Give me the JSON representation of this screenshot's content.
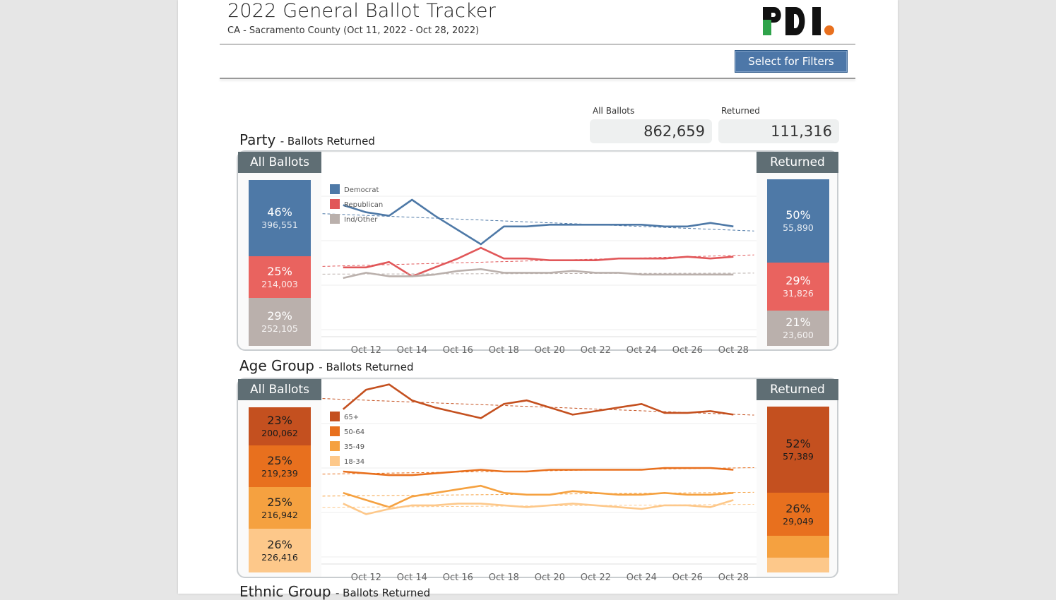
{
  "header": {
    "title": "2022 General Ballot Tracker",
    "subtitle": "CA - Sacramento County (Oct 11, 2022 - Oct 28, 2022)",
    "filter_button": "Select for Filters"
  },
  "kpis": {
    "all_ballots_label": "All Ballots",
    "all_ballots_value": "862,659",
    "returned_label": "Returned",
    "returned_value": "111,316"
  },
  "party": {
    "title": "Party",
    "subtitle": "- Ballots Returned",
    "left_head": "All Ballots",
    "right_head": "Returned",
    "legend": [
      {
        "label": "Democrat",
        "color": "#4e79a7"
      },
      {
        "label": "Republican",
        "color": "#e15759"
      },
      {
        "label": "Ind/Other",
        "color": "#bab0ac"
      }
    ],
    "all_segments": [
      {
        "pct": "46%",
        "count": "396,551",
        "color": "#4e79a7",
        "share": 0.46
      },
      {
        "pct": "25%",
        "count": "214,003",
        "color": "#e9635f",
        "share": 0.25
      },
      {
        "pct": "29%",
        "count": "252,105",
        "color": "#bab0ac",
        "share": 0.29
      }
    ],
    "returned_segments": [
      {
        "pct": "50%",
        "count": "55,890",
        "color": "#4e79a7",
        "share": 0.5
      },
      {
        "pct": "29%",
        "count": "31,826",
        "color": "#e9635f",
        "share": 0.29
      },
      {
        "pct": "21%",
        "count": "23,600",
        "color": "#bab0ac",
        "share": 0.21
      }
    ]
  },
  "age": {
    "title": "Age Group",
    "subtitle": "- Ballots Returned",
    "left_head": "All Ballots",
    "right_head": "Returned",
    "legend": [
      {
        "label": "65+",
        "color": "#c4501f"
      },
      {
        "label": "50-64",
        "color": "#e8701e"
      },
      {
        "label": "35-49",
        "color": "#f5a140"
      },
      {
        "label": "18-34",
        "color": "#fdc88a"
      }
    ],
    "all_segments": [
      {
        "pct": "23%",
        "count": "200,062",
        "color": "#c4501f",
        "share": 0.23
      },
      {
        "pct": "25%",
        "count": "219,239",
        "color": "#e8701e",
        "share": 0.25
      },
      {
        "pct": "25%",
        "count": "216,942",
        "color": "#f5a140",
        "share": 0.25
      },
      {
        "pct": "26%",
        "count": "226,416",
        "color": "#fdc88a",
        "share": 0.26
      }
    ],
    "returned_segments": [
      {
        "pct": "52%",
        "count": "57,389",
        "color": "#c4501f",
        "share": 0.52
      },
      {
        "pct": "26%",
        "count": "29,049",
        "color": "#e8701e",
        "share": 0.26
      },
      {
        "pct": "",
        "count": "",
        "color": "#f5a140",
        "share": 0.13
      },
      {
        "pct": "",
        "count": "",
        "color": "#fdc88a",
        "share": 0.09
      }
    ]
  },
  "ethnic": {
    "title": "Ethnic Group",
    "subtitle": "- Ballots Returned"
  },
  "chart_data": [
    {
      "type": "line",
      "x": [
        "Oct 11",
        "Oct 12",
        "Oct 13",
        "Oct 14",
        "Oct 15",
        "Oct 16",
        "Oct 17",
        "Oct 18",
        "Oct 19",
        "Oct 20",
        "Oct 21",
        "Oct 22",
        "Oct 23",
        "Oct 24",
        "Oct 25",
        "Oct 26",
        "Oct 27",
        "Oct 28"
      ],
      "tick_labels": [
        "Oct 12",
        "Oct 14",
        "Oct 16",
        "Oct 18",
        "Oct 20",
        "Oct 22",
        "Oct 24",
        "Oct 26",
        "Oct 28"
      ],
      "ylim": [
        0,
        1
      ],
      "trendlines": true,
      "legend_position": "top-left",
      "series": [
        {
          "name": "Democrat",
          "color": "#4e79a7",
          "values": [
            0.7,
            0.66,
            0.64,
            0.73,
            0.64,
            0.56,
            0.48,
            0.58,
            0.58,
            0.59,
            0.59,
            0.59,
            0.59,
            0.59,
            0.58,
            0.58,
            0.6,
            0.58
          ]
        },
        {
          "name": "Republican",
          "color": "#e15759",
          "values": [
            0.35,
            0.35,
            0.38,
            0.3,
            0.35,
            0.4,
            0.46,
            0.4,
            0.4,
            0.39,
            0.39,
            0.39,
            0.4,
            0.4,
            0.4,
            0.41,
            0.4,
            0.41
          ]
        },
        {
          "name": "Ind/Other",
          "color": "#bab0ac",
          "values": [
            0.29,
            0.32,
            0.3,
            0.3,
            0.31,
            0.33,
            0.34,
            0.32,
            0.32,
            0.32,
            0.33,
            0.32,
            0.32,
            0.31,
            0.31,
            0.31,
            0.31,
            0.31
          ]
        }
      ]
    },
    {
      "type": "line",
      "x": [
        "Oct 11",
        "Oct 12",
        "Oct 13",
        "Oct 14",
        "Oct 15",
        "Oct 16",
        "Oct 17",
        "Oct 18",
        "Oct 19",
        "Oct 20",
        "Oct 21",
        "Oct 22",
        "Oct 23",
        "Oct 24",
        "Oct 25",
        "Oct 26",
        "Oct 27",
        "Oct 28"
      ],
      "tick_labels": [
        "Oct 12",
        "Oct 14",
        "Oct 16",
        "Oct 18",
        "Oct 20",
        "Oct 22",
        "Oct 24",
        "Oct 26",
        "Oct 28"
      ],
      "ylim": [
        0,
        1
      ],
      "trendlines": true,
      "legend_position": "top-left",
      "series": [
        {
          "name": "65+",
          "color": "#c4501f",
          "values": [
            0.83,
            0.94,
            0.97,
            0.88,
            0.84,
            0.81,
            0.78,
            0.86,
            0.88,
            0.84,
            0.8,
            0.82,
            0.84,
            0.86,
            0.81,
            0.81,
            0.82,
            0.8
          ]
        },
        {
          "name": "50-64",
          "color": "#e8701e",
          "values": [
            0.48,
            0.47,
            0.46,
            0.46,
            0.47,
            0.48,
            0.49,
            0.48,
            0.48,
            0.49,
            0.49,
            0.49,
            0.49,
            0.49,
            0.5,
            0.5,
            0.5,
            0.49
          ]
        },
        {
          "name": "35-49",
          "color": "#f5a140",
          "values": [
            0.36,
            0.32,
            0.28,
            0.34,
            0.36,
            0.38,
            0.4,
            0.36,
            0.35,
            0.35,
            0.37,
            0.36,
            0.35,
            0.35,
            0.36,
            0.35,
            0.35,
            0.36
          ]
        },
        {
          "name": "18-34",
          "color": "#fdc88a",
          "values": [
            0.3,
            0.24,
            0.27,
            0.29,
            0.29,
            0.3,
            0.3,
            0.29,
            0.28,
            0.29,
            0.3,
            0.29,
            0.28,
            0.27,
            0.29,
            0.29,
            0.28,
            0.32
          ]
        }
      ]
    }
  ]
}
